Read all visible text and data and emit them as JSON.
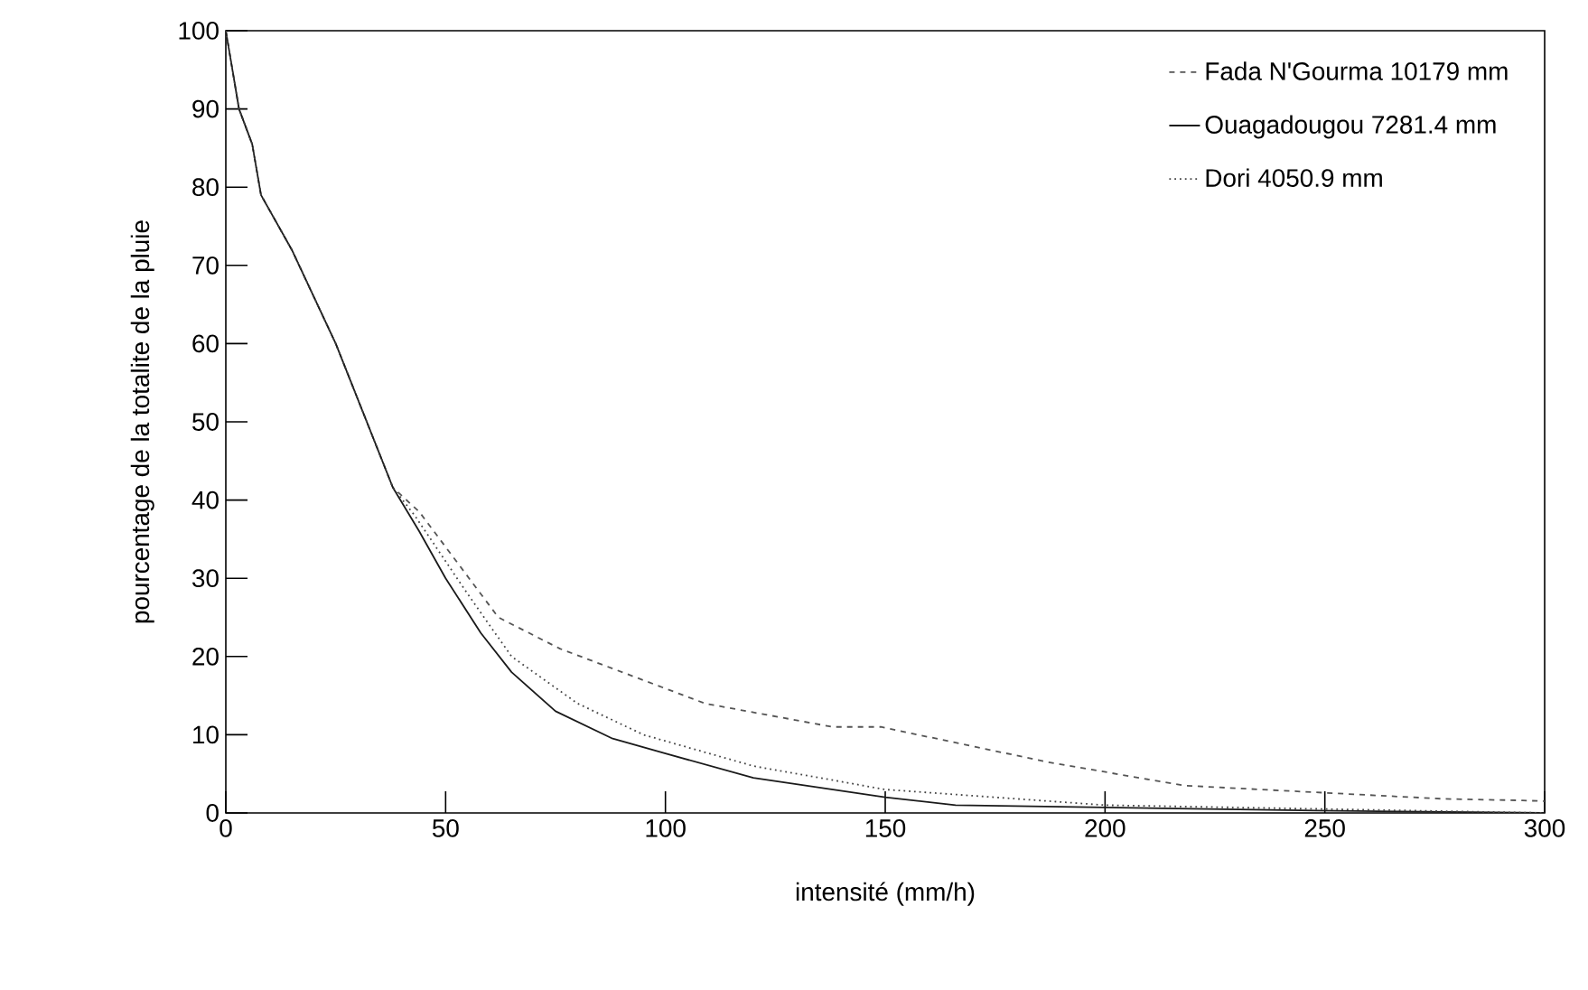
{
  "chart_data": {
    "type": "line",
    "xlabel": "intensité (mm/h)",
    "ylabel": "pourcentage de la totalite de la pluie",
    "xlim": [
      0,
      300
    ],
    "xticks": [
      0,
      50,
      100,
      150,
      200,
      250,
      300
    ],
    "ylim": [
      0,
      100
    ],
    "yticks": [
      0,
      10,
      20,
      30,
      40,
      50,
      60,
      70,
      80,
      90,
      100
    ],
    "legend": "top right",
    "grid": false,
    "marker": "none",
    "series": [
      {
        "name": "Fada N'Gourma 10179 mm",
        "color": "#555555",
        "line_style": "dashed",
        "x": [
          0,
          3,
          6,
          8,
          15,
          25,
          38,
          44,
          62,
          76,
          109,
          138,
          149,
          187,
          218,
          277,
          295,
          300
        ],
        "values": [
          100,
          90,
          85.5,
          79,
          72,
          60,
          41.6,
          38.5,
          25,
          21,
          14,
          11,
          11,
          6.5,
          3.5,
          1.8,
          1.6,
          1.5
        ]
      },
      {
        "name": "Ouagadougou 7281.4 mm",
        "color": "#1a1a1a",
        "line_style": "solid",
        "x": [
          0,
          3,
          6,
          8,
          15,
          25,
          38,
          44,
          50,
          58,
          65,
          75,
          88,
          100,
          120,
          150,
          166,
          200,
          248,
          300
        ],
        "values": [
          100,
          90,
          85.5,
          79,
          72,
          60,
          41.6,
          36,
          30,
          23,
          18,
          13,
          9.5,
          7.6,
          4.5,
          2,
          1,
          0.7,
          0.3,
          0
        ]
      },
      {
        "name": "Dori 4050.9 mm",
        "color": "#444444",
        "line_style": "dotted",
        "x": [
          0,
          3,
          6,
          8,
          15,
          25,
          38,
          43,
          55,
          65,
          80,
          95,
          120,
          150,
          200,
          250,
          300
        ],
        "values": [
          100,
          90,
          85.5,
          79,
          72,
          60,
          41.6,
          38,
          28,
          20,
          14,
          10,
          6,
          3,
          1,
          0.5,
          0
        ]
      }
    ]
  }
}
